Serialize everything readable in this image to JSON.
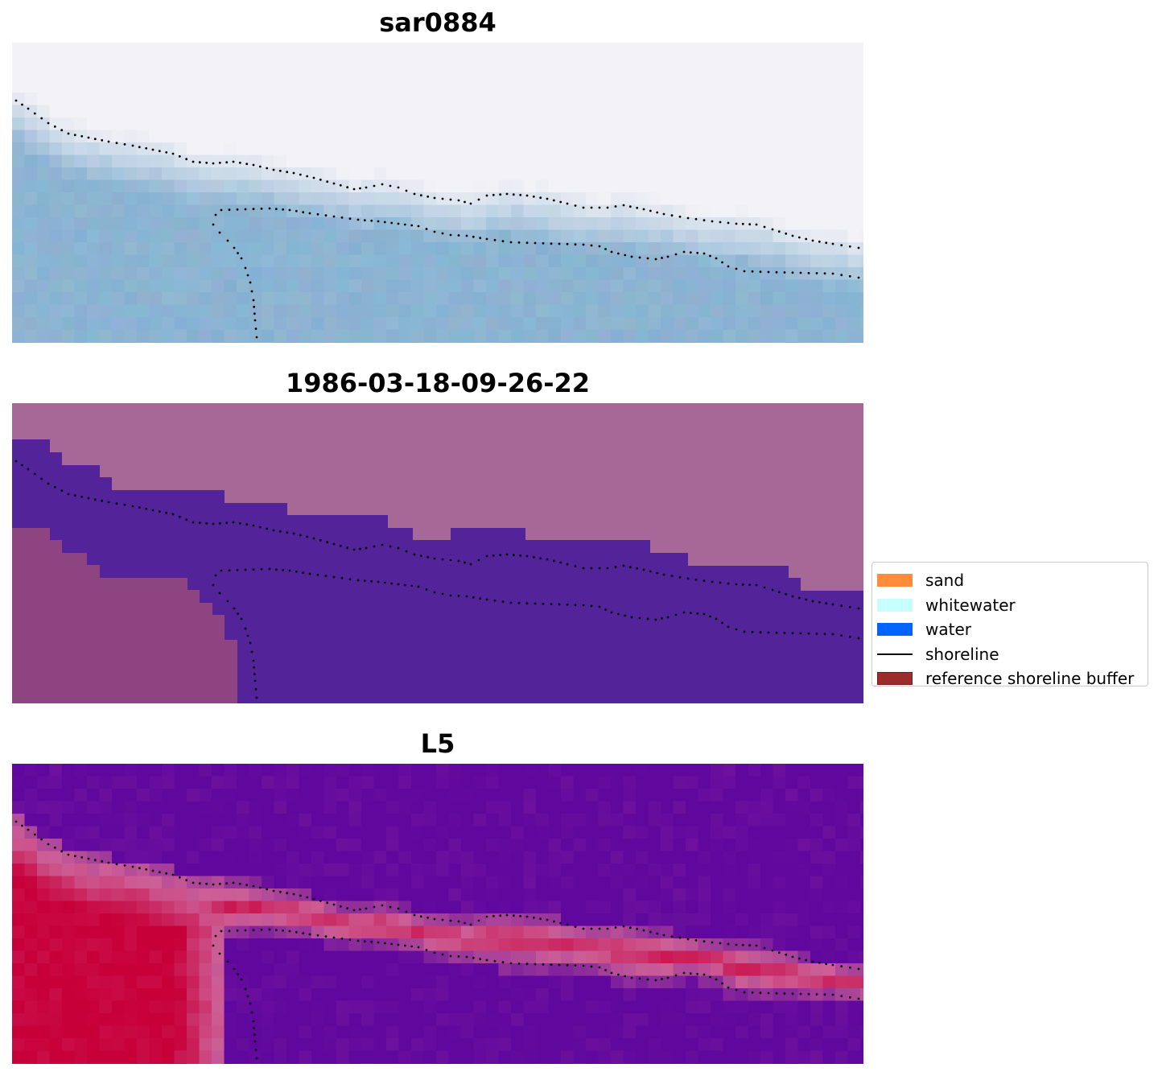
{
  "panels": [
    {
      "title": "sar0884",
      "kind": "rgb"
    },
    {
      "title": "1986-03-18-09-26-22",
      "kind": "classification"
    },
    {
      "title": "L5",
      "kind": "index"
    }
  ],
  "legend": {
    "items": [
      {
        "label": "sand",
        "type": "patch",
        "color": "#ff8c3c"
      },
      {
        "label": "whitewater",
        "type": "patch",
        "color": "#c8ffff"
      },
      {
        "label": "water",
        "type": "patch",
        "color": "#0064ff"
      },
      {
        "label": "shoreline",
        "type": "line",
        "color": "#000000"
      },
      {
        "label": "reference shoreline buffer",
        "type": "patch",
        "color": "#9b2c2c",
        "edge": "#7a1a1a"
      }
    ]
  },
  "colors": {
    "sand_plain": "#f3f2f7",
    "water_blue": "#8cb4d2",
    "class_background": "#a66896",
    "class_water": "#53239a",
    "class_land": "#8e4480",
    "index_low": "#60079e",
    "index_high": "#c8003a",
    "shoreline_dots": "#000000"
  }
}
